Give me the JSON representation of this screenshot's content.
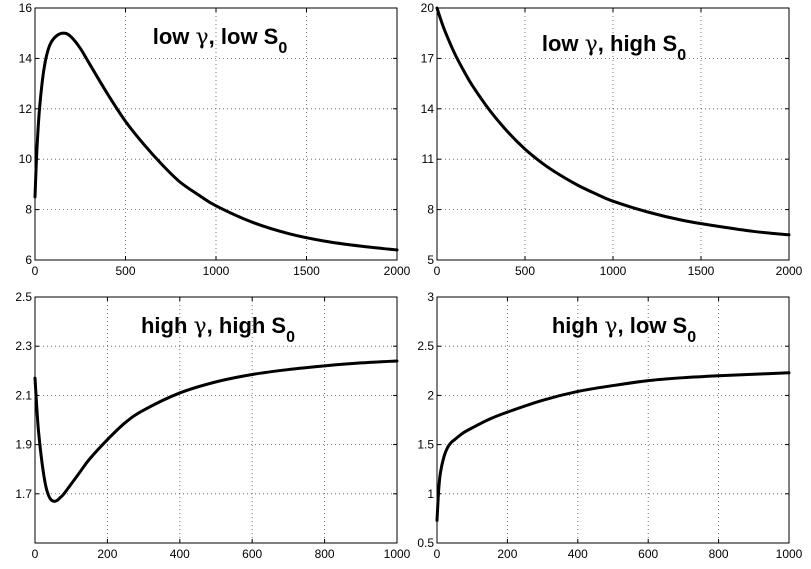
{
  "chart_data": [
    {
      "type": "line",
      "title": {
        "pre": "low ",
        "greek": "γ",
        "mid": ", low S",
        "sub": "0"
      },
      "xlim": [
        0,
        2000
      ],
      "ylim": [
        6,
        16
      ],
      "xticks": [
        0,
        500,
        1000,
        1500,
        2000
      ],
      "yticks": [
        6,
        8,
        10,
        12,
        14,
        16
      ],
      "grid": true,
      "series": [
        {
          "x": [
            0,
            10,
            25,
            50,
            80,
            120,
            165,
            200,
            250,
            300,
            400,
            500,
            600,
            700,
            800,
            900,
            1000,
            1200,
            1400,
            1600,
            1800,
            2000
          ],
          "y": [
            8.5,
            10.3,
            12.0,
            13.6,
            14.5,
            14.9,
            15.0,
            14.85,
            14.4,
            13.8,
            12.6,
            11.5,
            10.6,
            9.8,
            9.1,
            8.6,
            8.15,
            7.5,
            7.05,
            6.75,
            6.55,
            6.4
          ]
        }
      ]
    },
    {
      "type": "line",
      "title": {
        "pre": "low ",
        "greek": "γ",
        "mid": ", high S",
        "sub": "0"
      },
      "xlim": [
        0,
        2000
      ],
      "ylim": [
        5,
        20
      ],
      "xticks": [
        0,
        500,
        1000,
        1500,
        2000
      ],
      "yticks": [
        5,
        8,
        11,
        14,
        17,
        20
      ],
      "grid": true,
      "series": [
        {
          "x": [
            0,
            25,
            50,
            100,
            150,
            200,
            300,
            400,
            500,
            600,
            700,
            800,
            900,
            1000,
            1200,
            1400,
            1600,
            1800,
            2000
          ],
          "y": [
            20.0,
            19.2,
            18.5,
            17.3,
            16.3,
            15.4,
            13.9,
            12.65,
            11.6,
            10.75,
            10.05,
            9.45,
            8.95,
            8.5,
            7.85,
            7.35,
            7.0,
            6.7,
            6.5
          ]
        }
      ]
    },
    {
      "type": "line",
      "title": {
        "pre": "high ",
        "greek": "γ",
        "mid": ", high S",
        "sub": "0"
      },
      "xlim": [
        0,
        1000
      ],
      "ylim": [
        1.5,
        2.5
      ],
      "xticks": [
        0,
        200,
        400,
        600,
        800,
        1000
      ],
      "yticks": [
        1.7,
        1.9,
        2.1,
        2.3,
        2.5
      ],
      "grid": true,
      "series": [
        {
          "x": [
            0,
            5,
            10,
            20,
            30,
            40,
            50,
            60,
            70,
            80,
            100,
            125,
            150,
            200,
            250,
            300,
            400,
            500,
            600,
            700,
            800,
            900,
            1000
          ],
          "y": [
            2.17,
            2.05,
            1.95,
            1.82,
            1.73,
            1.685,
            1.67,
            1.672,
            1.685,
            1.7,
            1.74,
            1.79,
            1.84,
            1.92,
            1.99,
            2.04,
            2.11,
            2.155,
            2.185,
            2.205,
            2.22,
            2.232,
            2.24
          ]
        }
      ]
    },
    {
      "type": "line",
      "title": {
        "pre": "high ",
        "greek": "γ",
        "mid": ", low S",
        "sub": "0"
      },
      "xlim": [
        0,
        1000
      ],
      "ylim": [
        0.5,
        3
      ],
      "xticks": [
        0,
        200,
        400,
        600,
        800,
        1000
      ],
      "yticks": [
        0.5,
        1,
        1.5,
        2,
        2.5,
        3
      ],
      "grid": true,
      "series": [
        {
          "x": [
            0,
            5,
            10,
            20,
            30,
            40,
            50,
            75,
            100,
            150,
            200,
            300,
            400,
            500,
            600,
            700,
            800,
            900,
            1000
          ],
          "y": [
            0.73,
            1.05,
            1.22,
            1.38,
            1.47,
            1.52,
            1.55,
            1.62,
            1.67,
            1.76,
            1.83,
            1.95,
            2.04,
            2.1,
            2.15,
            2.18,
            2.2,
            2.215,
            2.23
          ]
        }
      ]
    }
  ]
}
